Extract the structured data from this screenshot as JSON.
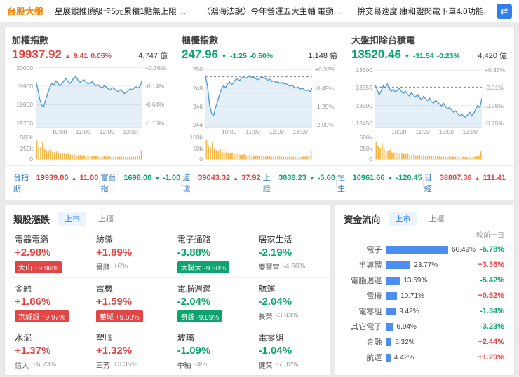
{
  "colors": {
    "up": "#e14545",
    "down": "#0fa36f",
    "accent_blue": "#2f80ed",
    "bar": "#4d8df0",
    "line": "#4b96d2",
    "volume": "#f5b544",
    "brand_orange": "#f08300"
  },
  "topbar": {
    "brand": "台股大盤",
    "news": [
      "星展銀推頂級卡5元累積1點無上限 ...",
      "〈鴻海法說〉今年營運五大主軸 電動...",
      "拚交易速度 康和證閃電下單4.0功能..."
    ]
  },
  "indices": [
    {
      "title": "加權指數",
      "price": "19937.92",
      "dir": "up",
      "change": "9.41",
      "change_pct": "0.05%",
      "volume": "4,747 億"
    },
    {
      "title": "櫃檯指數",
      "price": "247.96",
      "dir": "down",
      "change": "-1.25",
      "change_pct": "-0.50%",
      "volume": "1,148 億"
    },
    {
      "title": "大盤扣除台積電",
      "price": "13520.46",
      "dir": "down",
      "change": "-31.54",
      "change_pct": "-0.23%",
      "volume": "4,420 億"
    }
  ],
  "ticker": [
    {
      "label": "台指期",
      "value": "19939.00",
      "dir": "up",
      "change": "11.00"
    },
    {
      "label": "富台指",
      "value": "1698.00",
      "dir": "down",
      "change": "-1.00"
    },
    {
      "label": "道瓊",
      "value": "39043.32",
      "dir": "up",
      "change": "37.92"
    },
    {
      "label": "上證",
      "value": "3038.23",
      "dir": "down",
      "change": "-5.60"
    },
    {
      "label": "恒生",
      "value": "16961.66",
      "dir": "down",
      "change": "-120.45"
    },
    {
      "label": "日經",
      "value": "38807.38",
      "dir": "up",
      "change": "111.41"
    }
  ],
  "sectors": {
    "title": "類股漲跌",
    "tabs": [
      "上市",
      "上櫃"
    ],
    "cells": [
      {
        "name": "電器電纜",
        "pct": "+2.98%",
        "dir": "up",
        "leader": "大山",
        "leader_pct": "+9.96%",
        "leader_style": "badge"
      },
      {
        "name": "紡織",
        "pct": "+1.89%",
        "dir": "up",
        "leader": "景順",
        "leader_pct": "+6%",
        "leader_style": "plain"
      },
      {
        "name": "電子通路",
        "pct": "-3.88%",
        "dir": "down",
        "leader": "大聯大",
        "leader_pct": "-9.98%",
        "leader_style": "badge"
      },
      {
        "name": "居家生活",
        "pct": "-2.19%",
        "dir": "down",
        "leader": "慶豐富",
        "leader_pct": "-4.66%",
        "leader_style": "plain"
      },
      {
        "name": "金融",
        "pct": "+1.86%",
        "dir": "up",
        "leader": "京城銀",
        "leader_pct": "+9.97%",
        "leader_style": "badge"
      },
      {
        "name": "電機",
        "pct": "+1.59%",
        "dir": "up",
        "leader": "華城",
        "leader_pct": "+9.88%",
        "leader_style": "badge"
      },
      {
        "name": "電腦週邊",
        "pct": "-2.04%",
        "dir": "down",
        "leader": "奇鋐",
        "leader_pct": "-9.89%",
        "leader_style": "badge"
      },
      {
        "name": "航運",
        "pct": "-2.04%",
        "dir": "down",
        "leader": "長榮",
        "leader_pct": "-3.93%",
        "leader_style": "plain"
      },
      {
        "name": "水泥",
        "pct": "+1.37%",
        "dir": "up",
        "leader": "信大",
        "leader_pct": "+6.23%",
        "leader_style": "plain"
      },
      {
        "name": "塑膠",
        "pct": "+1.32%",
        "dir": "up",
        "leader": "三芳",
        "leader_pct": "+3.35%",
        "leader_style": "plain"
      },
      {
        "name": "玻璃",
        "pct": "-1.09%",
        "dir": "down",
        "leader": "中釉",
        "leader_pct": "-4%",
        "leader_style": "plain"
      },
      {
        "name": "電零組",
        "pct": "-1.04%",
        "dir": "down",
        "leader": "健策",
        "leader_pct": "-7.32%",
        "leader_style": "plain"
      }
    ]
  },
  "fundflow": {
    "title": "資金流向",
    "tabs": [
      "上市",
      "上櫃"
    ],
    "col_header": "較前一日",
    "rows": [
      {
        "label": "電子",
        "bar_pct": 60.49,
        "pct_label": "60.49%",
        "change": "-6.78%",
        "change_dir": "down"
      },
      {
        "label": "半導體",
        "bar_pct": 23.77,
        "pct_label": "23.77%",
        "change": "+3.36%",
        "change_dir": "up"
      },
      {
        "label": "電腦週邊",
        "bar_pct": 13.59,
        "pct_label": "13.59%",
        "change": "-5.42%",
        "change_dir": "down"
      },
      {
        "label": "電機",
        "bar_pct": 10.71,
        "pct_label": "10.71%",
        "change": "+0.52%",
        "change_dir": "up"
      },
      {
        "label": "電零組",
        "bar_pct": 9.42,
        "pct_label": "9.42%",
        "change": "-1.34%",
        "change_dir": "down"
      },
      {
        "label": "其它電子",
        "bar_pct": 6.94,
        "pct_label": "6.94%",
        "change": "-3.23%",
        "change_dir": "down"
      },
      {
        "label": "金融",
        "bar_pct": 5.32,
        "pct_label": "5.32%",
        "change": "+2.44%",
        "change_dir": "up"
      },
      {
        "label": "航運",
        "bar_pct": 4.42,
        "pct_label": "4.42%",
        "change": "+1.29%",
        "change_dir": "up"
      }
    ]
  },
  "chart_data": [
    {
      "type": "line",
      "title": "加權指數",
      "last": 19937.92,
      "prev_close": 19928.51,
      "session": [
        "09:00",
        "13:30"
      ],
      "x_ticks": [
        "10:00",
        "11:00",
        "12:00",
        "13:00"
      ],
      "ylim": [
        19680,
        20010
      ],
      "gridlines": [
        {
          "p": 20000,
          "label": "20000",
          "pct": "+0.36%"
        },
        {
          "p": 19900,
          "label": "19900",
          "pct": "-0.14%"
        },
        {
          "p": 19800,
          "label": "19800",
          "pct": "-0.64%"
        },
        {
          "p": 19700,
          "label": "19700",
          "pct": "-1.15%"
        }
      ],
      "vol_max": 500,
      "vol_ticks": [
        "500k",
        "250k",
        "0"
      ],
      "prices": [
        19930,
        19885,
        19830,
        19795,
        19790,
        19830,
        19862,
        19895,
        19915,
        19905,
        19928,
        19918,
        19902,
        19912,
        19930,
        19942,
        19926,
        19914,
        19930,
        19946,
        19952,
        19932,
        19922,
        19928,
        19934,
        19922,
        19912,
        19918,
        19924,
        19912,
        19902,
        19908,
        19896,
        19890,
        19902,
        19896,
        19886,
        19880,
        19892,
        19886,
        19876,
        19870,
        19882,
        19872,
        19860,
        19866,
        19876,
        19886,
        19880,
        19892,
        19896,
        19890,
        19902,
        19937.92
      ],
      "volumes": [
        430,
        310,
        265,
        385,
        245,
        205,
        185,
        225,
        165,
        152,
        172,
        142,
        132,
        152,
        122,
        112,
        132,
        102,
        96,
        112,
        92,
        86,
        102,
        82,
        92,
        76,
        86,
        72,
        82,
        66,
        76,
        62,
        72,
        56,
        66,
        60,
        56,
        66,
        52,
        60,
        56,
        50,
        60,
        46,
        56,
        50,
        46,
        56,
        50,
        60,
        56,
        66,
        72,
        185
      ]
    },
    {
      "type": "line",
      "title": "櫃檯指數",
      "last": 247.96,
      "prev_close": 249.21,
      "session": [
        "09:00",
        "13:30"
      ],
      "x_ticks": [
        "10:00",
        "11:00",
        "12:00",
        "13:00"
      ],
      "ylim": [
        243.8,
        250.4
      ],
      "gridlines": [
        {
          "p": 250,
          "label": "250",
          "pct": "+0.32%"
        },
        {
          "p": 248,
          "label": "248",
          "pct": "-0.49%"
        },
        {
          "p": 246,
          "label": "246",
          "pct": "-1.29%"
        },
        {
          "p": 244,
          "label": "244",
          "pct": "-2.09%"
        }
      ],
      "vol_max": 100,
      "vol_ticks": [
        "100k",
        "50k",
        "0"
      ],
      "prices": [
        249.3,
        248.2,
        246.2,
        245.3,
        245.0,
        245.9,
        246.6,
        247.3,
        247.9,
        248.25,
        248.05,
        248.45,
        248.65,
        248.35,
        248.6,
        248.9,
        249.0,
        248.8,
        249.1,
        249.25,
        249.05,
        249.2,
        249.35,
        249.1,
        249.2,
        249.0,
        248.9,
        249.05,
        249.2,
        249.1,
        249.0,
        248.85,
        248.95,
        248.7,
        248.8,
        248.6,
        248.7,
        248.5,
        248.6,
        248.45,
        248.5,
        248.3,
        248.2,
        248.35,
        248.1,
        248.0,
        248.1,
        247.9,
        248.0,
        247.85,
        247.7,
        247.8,
        247.6,
        247.96
      ],
      "volumes": [
        88,
        62,
        53,
        77,
        49,
        41,
        37,
        45,
        33,
        30,
        34,
        28,
        26,
        30,
        24,
        22,
        26,
        20,
        19,
        22,
        18,
        17,
        20,
        16,
        18,
        15,
        17,
        14,
        16,
        13,
        15,
        12,
        14,
        11,
        13,
        12,
        11,
        13,
        10,
        12,
        11,
        10,
        12,
        9,
        11,
        10,
        9,
        11,
        10,
        12,
        11,
        13,
        14,
        37
      ]
    },
    {
      "type": "line",
      "title": "大盤扣除台積電",
      "last": 13520.46,
      "prev_close": 13552.0,
      "session": [
        "09:00",
        "13:30"
      ],
      "x_ticks": [
        "10:00",
        "11:00",
        "12:00",
        "13:00"
      ],
      "ylim": [
        13440,
        13612
      ],
      "gridlines": [
        {
          "p": 13600,
          "label": "13600",
          "pct": "+0.35%"
        },
        {
          "p": 13550,
          "label": "13550",
          "pct": "-0.01%"
        },
        {
          "p": 13500,
          "label": "13500",
          "pct": "-0.38%"
        },
        {
          "p": 13450,
          "label": "13450",
          "pct": "-0.75%"
        }
      ],
      "vol_max": 500,
      "vol_ticks": [
        "500k",
        "250k",
        "0"
      ],
      "prices": [
        13558,
        13544,
        13530,
        13542,
        13556,
        13550,
        13561,
        13548,
        13540,
        13546,
        13538,
        13543,
        13549,
        13540,
        13534,
        13541,
        13532,
        13527,
        13536,
        13530,
        13524,
        13531,
        13522,
        13517,
        13526,
        13520,
        13514,
        13521,
        13511,
        13507,
        13515,
        13509,
        13504,
        13499,
        13506,
        13497,
        13491,
        13495,
        13487,
        13481,
        13485,
        13477,
        13471,
        13476,
        13469,
        13467,
        13475,
        13481,
        13471,
        13478,
        13491,
        13501,
        13494,
        13520.46
      ],
      "volumes": [
        410,
        295,
        255,
        365,
        235,
        195,
        175,
        215,
        155,
        145,
        165,
        135,
        125,
        145,
        115,
        108,
        125,
        98,
        92,
        108,
        88,
        82,
        98,
        78,
        88,
        73,
        82,
        68,
        78,
        63,
        73,
        59,
        68,
        53,
        63,
        57,
        53,
        63,
        49,
        57,
        53,
        48,
        57,
        44,
        53,
        48,
        44,
        53,
        48,
        57,
        53,
        63,
        68,
        175
      ]
    },
    {
      "type": "bar",
      "title": "資金流向 (上市)",
      "orientation": "horizontal",
      "unit": "%",
      "categories": [
        "電子",
        "半導體",
        "電腦週邊",
        "電機",
        "電零組",
        "其它電子",
        "金融",
        "航運"
      ],
      "values": [
        60.49,
        23.77,
        13.59,
        10.71,
        9.42,
        6.94,
        5.32,
        4.42
      ],
      "change_vs_prev_day": [
        -6.78,
        3.36,
        -5.42,
        0.52,
        -1.34,
        -3.23,
        2.44,
        1.29
      ]
    }
  ]
}
